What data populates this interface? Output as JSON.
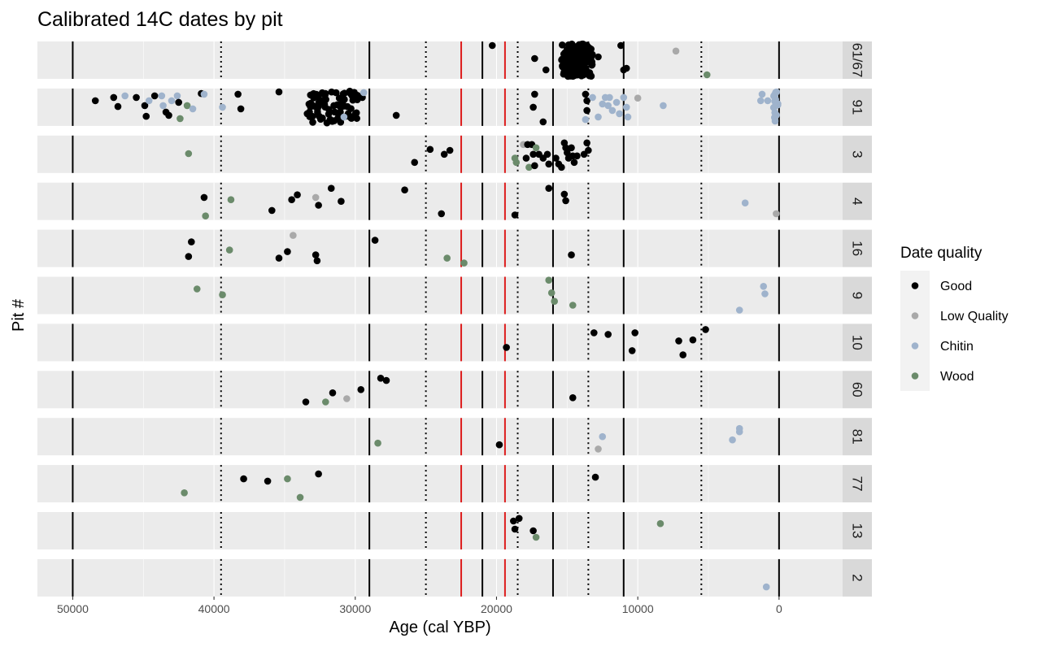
{
  "chart_data": {
    "type": "scatter",
    "title": "Calibrated 14C dates by pit",
    "xlabel": "Age (cal YBP)",
    "ylabel": "Pit #",
    "xlim": [
      52500,
      -4500
    ],
    "x_ticks": [
      {
        "value": 50000,
        "label": "50000"
      },
      {
        "value": 40000,
        "label": "40000"
      },
      {
        "value": 30000,
        "label": "30000"
      },
      {
        "value": 20000,
        "label": "20000"
      },
      {
        "value": 10000,
        "label": "10000"
      },
      {
        "value": 0,
        "label": "0"
      }
    ],
    "x_reversed": true,
    "grid": true,
    "reference_lines": {
      "solid_black": [
        50000,
        29000,
        21000,
        16000,
        11000,
        0
      ],
      "dotted_black": [
        39500,
        25000,
        18500,
        13500,
        5500
      ],
      "solid_red": [
        22500,
        19400
      ]
    },
    "facets": [
      "61/67",
      "91",
      "3",
      "4",
      "16",
      "9",
      "10",
      "60",
      "81",
      "77",
      "13",
      "2"
    ],
    "legend": {
      "title": "Date quality",
      "placement": "right",
      "entries": [
        {
          "name": "Good",
          "color": "#000000"
        },
        {
          "name": "Low Quality",
          "color": "#a9a9a9"
        },
        {
          "name": "Chitin",
          "color": "#9fb3cc"
        },
        {
          "name": "Wood",
          "color": "#6b8b6b"
        }
      ]
    },
    "jitter_note_range": [
      0,
      1
    ],
    "series": [
      {
        "facet": "61/67",
        "points": [
          {
            "x": 20300,
            "y": 0.05,
            "q": "Good"
          },
          {
            "x": 17300,
            "y": 0.45,
            "q": "Good"
          },
          {
            "x": 16500,
            "y": 0.8,
            "q": "Good"
          },
          {
            "x": 11200,
            "y": 0.05,
            "q": "Good"
          },
          {
            "x": 12800,
            "y": 0.4,
            "q": "Good"
          },
          {
            "x": 11000,
            "y": 0.8,
            "q": "Good"
          },
          {
            "x": 10800,
            "y": 0.75,
            "q": "Good"
          },
          {
            "x": 7300,
            "y": 0.22,
            "q": "Low Quality"
          },
          {
            "x": 5100,
            "y": 0.95,
            "q": "Wood"
          }
        ],
        "cluster": {
          "x_min": 13200,
          "x_max": 15400,
          "n": 160,
          "q": "Good"
        }
      },
      {
        "facet": "91",
        "points": [
          {
            "x": 48400,
            "y": 0.3,
            "q": "Good"
          },
          {
            "x": 47100,
            "y": 0.2,
            "q": "Good"
          },
          {
            "x": 46800,
            "y": 0.48,
            "q": "Good"
          },
          {
            "x": 46300,
            "y": 0.15,
            "q": "Chitin"
          },
          {
            "x": 45500,
            "y": 0.2,
            "q": "Good"
          },
          {
            "x": 44900,
            "y": 0.45,
            "q": "Good"
          },
          {
            "x": 44800,
            "y": 0.78,
            "q": "Good"
          },
          {
            "x": 44600,
            "y": 0.3,
            "q": "Chitin"
          },
          {
            "x": 44200,
            "y": 0.15,
            "q": "Good"
          },
          {
            "x": 43700,
            "y": 0.15,
            "q": "Chitin"
          },
          {
            "x": 43600,
            "y": 0.45,
            "q": "Chitin"
          },
          {
            "x": 43400,
            "y": 0.65,
            "q": "Good"
          },
          {
            "x": 43200,
            "y": 0.75,
            "q": "Good"
          },
          {
            "x": 43000,
            "y": 0.3,
            "q": "Chitin"
          },
          {
            "x": 42600,
            "y": 0.15,
            "q": "Chitin"
          },
          {
            "x": 42500,
            "y": 0.35,
            "q": "Good"
          },
          {
            "x": 42400,
            "y": 0.85,
            "q": "Wood"
          },
          {
            "x": 41900,
            "y": 0.45,
            "q": "Wood"
          },
          {
            "x": 41500,
            "y": 0.55,
            "q": "Chitin"
          },
          {
            "x": 40900,
            "y": 0.08,
            "q": "Good"
          },
          {
            "x": 40700,
            "y": 0.1,
            "q": "Chitin"
          },
          {
            "x": 39400,
            "y": 0.5,
            "q": "Chitin"
          },
          {
            "x": 38300,
            "y": 0.1,
            "q": "Good"
          },
          {
            "x": 38100,
            "y": 0.55,
            "q": "Good"
          },
          {
            "x": 35400,
            "y": 0.03,
            "q": "Good"
          },
          {
            "x": 33400,
            "y": 0.7,
            "q": "Good"
          },
          {
            "x": 31200,
            "y": 0.7,
            "q": "Good"
          },
          {
            "x": 30800,
            "y": 0.8,
            "q": "Chitin"
          },
          {
            "x": 30200,
            "y": 0.8,
            "q": "Good"
          },
          {
            "x": 29500,
            "y": 0.2,
            "q": "Good"
          },
          {
            "x": 29400,
            "y": 0.05,
            "q": "Chitin"
          },
          {
            "x": 27100,
            "y": 0.75,
            "q": "Good"
          },
          {
            "x": 17300,
            "y": 0.1,
            "q": "Good"
          },
          {
            "x": 17400,
            "y": 0.5,
            "q": "Good"
          },
          {
            "x": 16700,
            "y": 0.95,
            "q": "Good"
          },
          {
            "x": 13700,
            "y": 0.1,
            "q": "Good"
          },
          {
            "x": 13600,
            "y": 0.3,
            "q": "Good"
          },
          {
            "x": 13600,
            "y": 0.6,
            "q": "Good"
          },
          {
            "x": 13700,
            "y": 0.88,
            "q": "Chitin"
          },
          {
            "x": 13200,
            "y": 0.2,
            "q": "Chitin"
          },
          {
            "x": 12800,
            "y": 0.8,
            "q": "Chitin"
          },
          {
            "x": 12500,
            "y": 0.4,
            "q": "Chitin"
          },
          {
            "x": 12300,
            "y": 0.2,
            "q": "Chitin"
          },
          {
            "x": 12000,
            "y": 0.2,
            "q": "Chitin"
          },
          {
            "x": 12100,
            "y": 0.45,
            "q": "Chitin"
          },
          {
            "x": 11800,
            "y": 0.6,
            "q": "Chitin"
          },
          {
            "x": 11500,
            "y": 0.35,
            "q": "Chitin"
          },
          {
            "x": 11300,
            "y": 0.7,
            "q": "Chitin"
          },
          {
            "x": 11000,
            "y": 0.2,
            "q": "Chitin"
          },
          {
            "x": 10800,
            "y": 0.5,
            "q": "Chitin"
          },
          {
            "x": 10700,
            "y": 0.8,
            "q": "Chitin"
          },
          {
            "x": 10000,
            "y": 0.22,
            "q": "Low Quality"
          },
          {
            "x": 8200,
            "y": 0.45,
            "q": "Chitin"
          },
          {
            "x": 1200,
            "y": 0.1,
            "q": "Chitin"
          },
          {
            "x": 1300,
            "y": 0.3,
            "q": "Chitin"
          },
          {
            "x": 800,
            "y": 0.3,
            "q": "Chitin"
          }
        ],
        "cluster": {
          "x_min": 29800,
          "x_max": 33300,
          "n": 70,
          "q": "Good"
        },
        "cluster2": {
          "x_min": 0,
          "x_max": 400,
          "n": 14,
          "q": "Chitin"
        }
      },
      {
        "facet": "3",
        "points": [
          {
            "x": 41800,
            "y": 0.48,
            "q": "Wood"
          },
          {
            "x": 25800,
            "y": 0.75,
            "q": "Good"
          },
          {
            "x": 24700,
            "y": 0.35,
            "q": "Good"
          },
          {
            "x": 23700,
            "y": 0.5,
            "q": "Good"
          },
          {
            "x": 23300,
            "y": 0.38,
            "q": "Good"
          },
          {
            "x": 18100,
            "y": 0.2,
            "q": "Low Quality"
          },
          {
            "x": 17800,
            "y": 0.2,
            "q": "Good"
          },
          {
            "x": 17500,
            "y": 0.2,
            "q": "Good"
          },
          {
            "x": 17900,
            "y": 0.62,
            "q": "Good"
          },
          {
            "x": 18700,
            "y": 0.62,
            "q": "Wood"
          },
          {
            "x": 18600,
            "y": 0.75,
            "q": "Wood"
          },
          {
            "x": 17700,
            "y": 0.9,
            "q": "Wood"
          },
          {
            "x": 17400,
            "y": 0.5,
            "q": "Good"
          },
          {
            "x": 17300,
            "y": 0.85,
            "q": "Good"
          },
          {
            "x": 17200,
            "y": 0.3,
            "q": "Wood"
          },
          {
            "x": 17000,
            "y": 0.5,
            "q": "Good"
          },
          {
            "x": 16700,
            "y": 0.62,
            "q": "Good"
          },
          {
            "x": 16400,
            "y": 0.5,
            "q": "Good"
          },
          {
            "x": 16300,
            "y": 0.8,
            "q": "Good"
          },
          {
            "x": 15800,
            "y": 0.62,
            "q": "Good"
          },
          {
            "x": 15600,
            "y": 0.8,
            "q": "Good"
          },
          {
            "x": 15400,
            "y": 0.9,
            "q": "Good"
          },
          {
            "x": 15200,
            "y": 0.15,
            "q": "Good"
          },
          {
            "x": 15100,
            "y": 0.3,
            "q": "Good"
          },
          {
            "x": 15000,
            "y": 0.45,
            "q": "Good"
          },
          {
            "x": 14900,
            "y": 0.62,
            "q": "Good"
          },
          {
            "x": 14700,
            "y": 0.3,
            "q": "Good"
          },
          {
            "x": 14600,
            "y": 0.55,
            "q": "Good"
          },
          {
            "x": 14500,
            "y": 0.75,
            "q": "Good"
          },
          {
            "x": 14300,
            "y": 0.55,
            "q": "Good"
          },
          {
            "x": 13800,
            "y": 0.5,
            "q": "Good"
          },
          {
            "x": 13600,
            "y": 0.15,
            "q": "Good"
          },
          {
            "x": 13500,
            "y": 0.38,
            "q": "Good"
          }
        ]
      },
      {
        "facet": "4",
        "points": [
          {
            "x": 40700,
            "y": 0.38,
            "q": "Good"
          },
          {
            "x": 40600,
            "y": 0.95,
            "q": "Wood"
          },
          {
            "x": 38800,
            "y": 0.45,
            "q": "Wood"
          },
          {
            "x": 35900,
            "y": 0.78,
            "q": "Good"
          },
          {
            "x": 34500,
            "y": 0.45,
            "q": "Good"
          },
          {
            "x": 34100,
            "y": 0.3,
            "q": "Good"
          },
          {
            "x": 32800,
            "y": 0.38,
            "q": "Low Quality"
          },
          {
            "x": 32600,
            "y": 0.62,
            "q": "Good"
          },
          {
            "x": 31700,
            "y": 0.1,
            "q": "Good"
          },
          {
            "x": 31000,
            "y": 0.5,
            "q": "Good"
          },
          {
            "x": 26500,
            "y": 0.15,
            "q": "Good"
          },
          {
            "x": 23900,
            "y": 0.88,
            "q": "Good"
          },
          {
            "x": 18700,
            "y": 0.92,
            "q": "Good"
          },
          {
            "x": 16300,
            "y": 0.1,
            "q": "Good"
          },
          {
            "x": 15200,
            "y": 0.28,
            "q": "Good"
          },
          {
            "x": 15100,
            "y": 0.48,
            "q": "Good"
          },
          {
            "x": 2400,
            "y": 0.55,
            "q": "Chitin"
          },
          {
            "x": 200,
            "y": 0.88,
            "q": "Low Quality"
          }
        ]
      },
      {
        "facet": "16",
        "points": [
          {
            "x": 41600,
            "y": 0.3,
            "q": "Good"
          },
          {
            "x": 41800,
            "y": 0.75,
            "q": "Good"
          },
          {
            "x": 38900,
            "y": 0.55,
            "q": "Wood"
          },
          {
            "x": 35400,
            "y": 0.8,
            "q": "Good"
          },
          {
            "x": 34800,
            "y": 0.6,
            "q": "Good"
          },
          {
            "x": 34400,
            "y": 0.1,
            "q": "Low Quality"
          },
          {
            "x": 32800,
            "y": 0.7,
            "q": "Good"
          },
          {
            "x": 32700,
            "y": 0.88,
            "q": "Good"
          },
          {
            "x": 28600,
            "y": 0.25,
            "q": "Good"
          },
          {
            "x": 23500,
            "y": 0.8,
            "q": "Wood"
          },
          {
            "x": 22300,
            "y": 0.95,
            "q": "Wood"
          },
          {
            "x": 14700,
            "y": 0.7,
            "q": "Good"
          }
        ]
      },
      {
        "facet": "9",
        "points": [
          {
            "x": 41200,
            "y": 0.3,
            "q": "Wood"
          },
          {
            "x": 39400,
            "y": 0.48,
            "q": "Wood"
          },
          {
            "x": 16300,
            "y": 0.03,
            "q": "Wood"
          },
          {
            "x": 16100,
            "y": 0.42,
            "q": "Wood"
          },
          {
            "x": 15900,
            "y": 0.68,
            "q": "Wood"
          },
          {
            "x": 14600,
            "y": 0.8,
            "q": "Wood"
          },
          {
            "x": 1100,
            "y": 0.22,
            "q": "Chitin"
          },
          {
            "x": 1000,
            "y": 0.45,
            "q": "Chitin"
          },
          {
            "x": 2800,
            "y": 0.95,
            "q": "Chitin"
          }
        ]
      },
      {
        "facet": "10",
        "points": [
          {
            "x": 19300,
            "y": 0.65,
            "q": "Good"
          },
          {
            "x": 13100,
            "y": 0.2,
            "q": "Good"
          },
          {
            "x": 12100,
            "y": 0.25,
            "q": "Good"
          },
          {
            "x": 10200,
            "y": 0.2,
            "q": "Good"
          },
          {
            "x": 10400,
            "y": 0.75,
            "q": "Good"
          },
          {
            "x": 7100,
            "y": 0.45,
            "q": "Good"
          },
          {
            "x": 6800,
            "y": 0.88,
            "q": "Good"
          },
          {
            "x": 6100,
            "y": 0.42,
            "q": "Good"
          },
          {
            "x": 5200,
            "y": 0.1,
            "q": "Good"
          }
        ]
      },
      {
        "facet": "60",
        "points": [
          {
            "x": 33500,
            "y": 0.88,
            "q": "Good"
          },
          {
            "x": 32100,
            "y": 0.88,
            "q": "Wood"
          },
          {
            "x": 31600,
            "y": 0.6,
            "q": "Good"
          },
          {
            "x": 30600,
            "y": 0.78,
            "q": "Low Quality"
          },
          {
            "x": 29600,
            "y": 0.5,
            "q": "Good"
          },
          {
            "x": 28200,
            "y": 0.15,
            "q": "Good"
          },
          {
            "x": 27800,
            "y": 0.22,
            "q": "Good"
          },
          {
            "x": 14600,
            "y": 0.75,
            "q": "Good"
          }
        ]
      },
      {
        "facet": "81",
        "points": [
          {
            "x": 28400,
            "y": 0.7,
            "q": "Wood"
          },
          {
            "x": 19800,
            "y": 0.75,
            "q": "Good"
          },
          {
            "x": 12500,
            "y": 0.5,
            "q": "Chitin"
          },
          {
            "x": 12800,
            "y": 0.88,
            "q": "Low Quality"
          },
          {
            "x": 2800,
            "y": 0.25,
            "q": "Chitin"
          },
          {
            "x": 2800,
            "y": 0.35,
            "q": "Chitin"
          },
          {
            "x": 3300,
            "y": 0.6,
            "q": "Chitin"
          }
        ]
      },
      {
        "facet": "77",
        "points": [
          {
            "x": 42100,
            "y": 0.78,
            "q": "Wood"
          },
          {
            "x": 37900,
            "y": 0.35,
            "q": "Good"
          },
          {
            "x": 36200,
            "y": 0.42,
            "q": "Good"
          },
          {
            "x": 34800,
            "y": 0.35,
            "q": "Wood"
          },
          {
            "x": 33900,
            "y": 0.92,
            "q": "Wood"
          },
          {
            "x": 32600,
            "y": 0.2,
            "q": "Good"
          },
          {
            "x": 13000,
            "y": 0.3,
            "q": "Good"
          }
        ]
      },
      {
        "facet": "13",
        "points": [
          {
            "x": 18800,
            "y": 0.2,
            "q": "Good"
          },
          {
            "x": 18400,
            "y": 0.12,
            "q": "Good"
          },
          {
            "x": 18700,
            "y": 0.45,
            "q": "Good"
          },
          {
            "x": 17400,
            "y": 0.5,
            "q": "Good"
          },
          {
            "x": 17200,
            "y": 0.7,
            "q": "Wood"
          },
          {
            "x": 8400,
            "y": 0.28,
            "q": "Wood"
          }
        ]
      },
      {
        "facet": "2",
        "points": [
          {
            "x": 900,
            "y": 0.78,
            "q": "Chitin"
          }
        ]
      }
    ]
  }
}
